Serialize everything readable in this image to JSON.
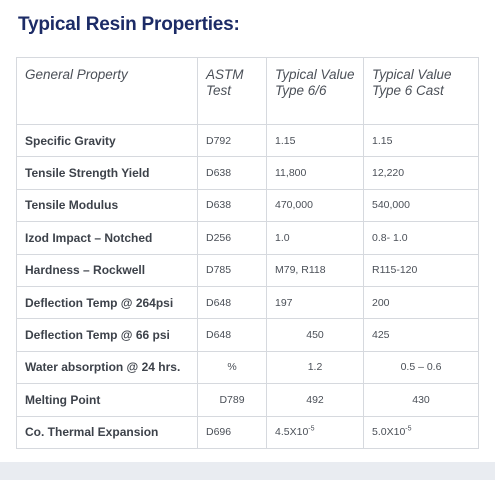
{
  "title": "Typical Resin Properties:",
  "headers": {
    "property": "General Property",
    "astm": "ASTM Test",
    "type66": "Typical Value Type 6/6",
    "type6cast": "Typical Value Type 6 Cast"
  },
  "rows": [
    {
      "property": "Specific Gravity",
      "astm": "D792",
      "type66": "1.15",
      "type6cast": "1.15"
    },
    {
      "property": "Tensile Strength Yield",
      "astm": "D638",
      "type66": "11,800",
      "type6cast": "12,220"
    },
    {
      "property": "Tensile Modulus",
      "astm": "D638",
      "type66": "470,000",
      "type6cast": "540,000"
    },
    {
      "property": "Izod Impact – Notched",
      "astm": "D256",
      "type66": "1.0",
      "type6cast": "0.8- 1.0"
    },
    {
      "property": "Hardness – Rockwell",
      "astm": "D785",
      "type66": "M79, R118",
      "type6cast": "R115-120"
    },
    {
      "property": "Deflection Temp @ 264psi",
      "astm": "D648",
      "type66": "197",
      "type6cast": "200"
    },
    {
      "property": "Deflection Temp @ 66 psi",
      "astm": "D648",
      "type66": "450",
      "type6cast": "425"
    },
    {
      "property": "Water absorption @ 24 hrs.",
      "astm": "%",
      "type66": "1.2",
      "type6cast": "0.5 – 0.6"
    },
    {
      "property": "Melting Point",
      "astm": "D789",
      "type66": "492",
      "type6cast": "430"
    },
    {
      "property": "Co. Thermal Expansion",
      "astm": "D696",
      "type66": "4.5X10",
      "type66_exp": "-5",
      "type6cast": "5.0X10",
      "type6cast_exp": "-5"
    }
  ]
}
